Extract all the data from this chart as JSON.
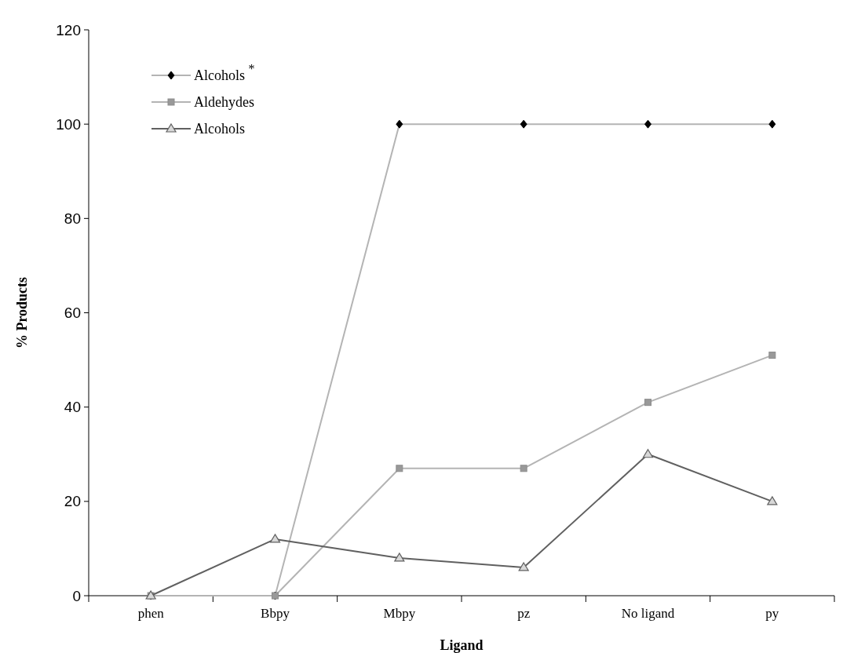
{
  "chart_data": {
    "type": "line",
    "xlabel": "Ligand",
    "ylabel": "% Products",
    "categories": [
      "phen",
      "Bbpy",
      "Mbpy",
      "pz",
      "No ligand",
      "py"
    ],
    "ylim": [
      0,
      120
    ],
    "yticks": [
      0,
      20,
      40,
      60,
      80,
      100,
      120
    ],
    "grid": false,
    "legend": "top left",
    "series": [
      {
        "name": "Alcohols $^{*}$",
        "color": "#b4b4b4",
        "marker": "diamond",
        "values": [
          0,
          0,
          100,
          100,
          100,
          100
        ]
      },
      {
        "name": "Aldehydes",
        "color": "#b4b4b4",
        "marker": "square",
        "values": [
          0,
          0,
          27,
          27,
          41,
          51
        ]
      },
      {
        "name": "Alcohols",
        "color": "#606060",
        "marker": "triangle",
        "values": [
          0,
          12,
          8,
          6,
          30,
          20
        ]
      }
    ]
  }
}
